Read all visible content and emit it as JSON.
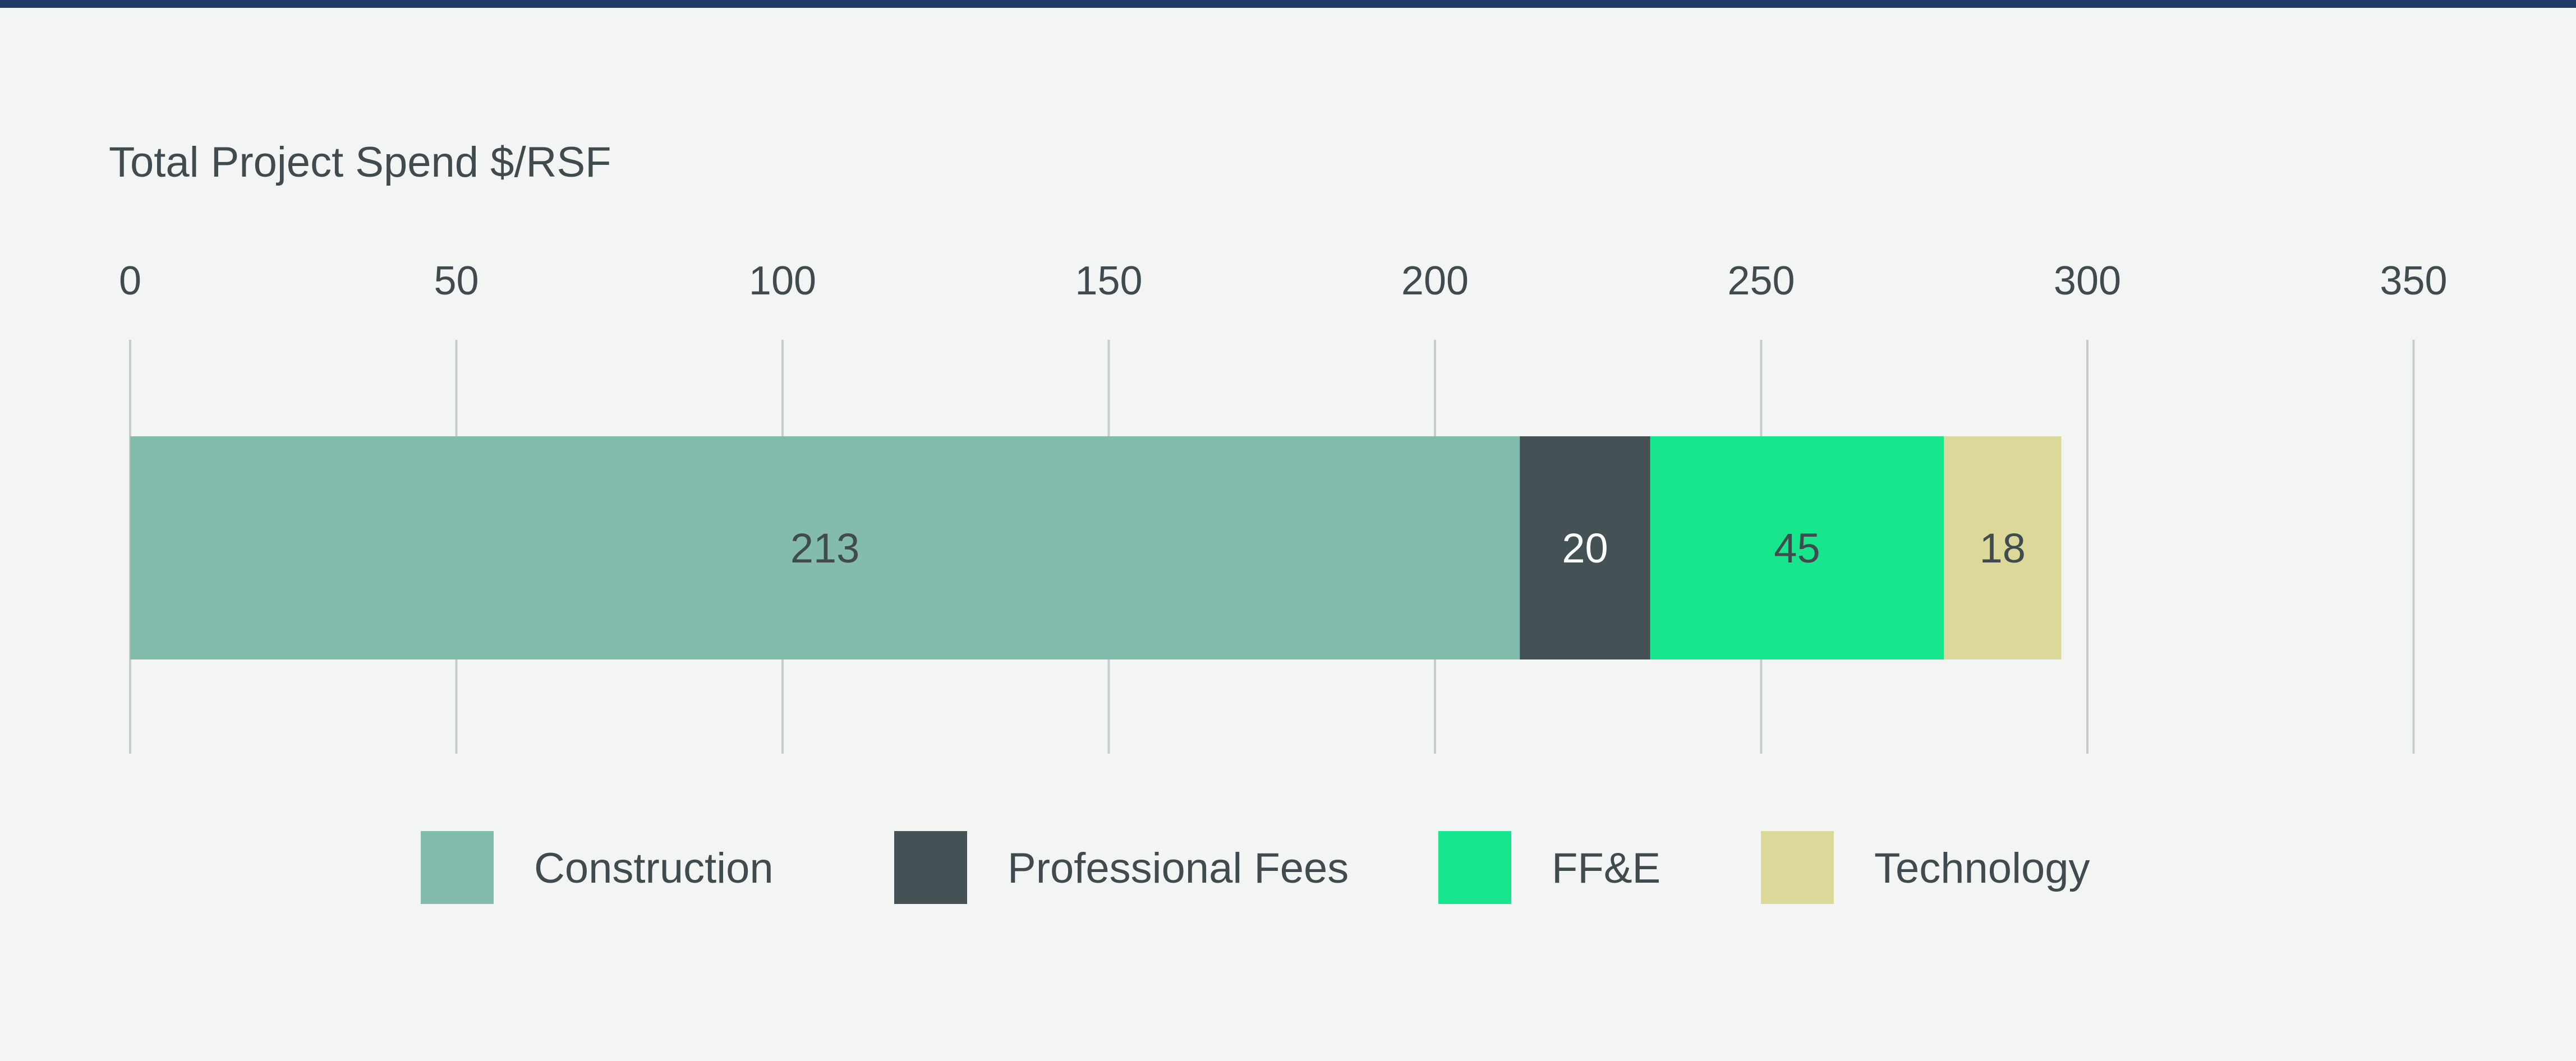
{
  "chart_data": {
    "type": "bar",
    "orientation": "horizontal",
    "stacked": true,
    "title": "Total Project Spend $/RSF",
    "xlabel": "",
    "ylabel": "",
    "xlim": [
      0,
      350
    ],
    "x_ticks": [
      0,
      50,
      100,
      150,
      200,
      250,
      300,
      350
    ],
    "x_tick_labels": [
      "0",
      "50",
      "100",
      "150",
      "200",
      "250",
      "300",
      "350"
    ],
    "grid": "vertical",
    "legend_position": "bottom-center",
    "categories": [
      "Total Project Spend"
    ],
    "series": [
      {
        "name": "Construction",
        "values": [
          213
        ],
        "color": "#83bbad",
        "label_color": "#3f4b4e"
      },
      {
        "name": "Professional Fees",
        "values": [
          20
        ],
        "color": "#445155",
        "label_color": "#ffffff"
      },
      {
        "name": "FF&E",
        "values": [
          45
        ],
        "color": "#17e68c",
        "label_color": "#3f4b4e"
      },
      {
        "name": "Technology",
        "values": [
          18
        ],
        "color": "#dcd89a",
        "label_color": "#3f4b4e"
      }
    ],
    "data_labels": [
      "213",
      "20",
      "45",
      "18"
    ]
  },
  "colors": {
    "background": "#f3f5f4",
    "top_rule": "#1f3a66",
    "text": "#3f4b4e",
    "gridline": "#c7cccb"
  }
}
